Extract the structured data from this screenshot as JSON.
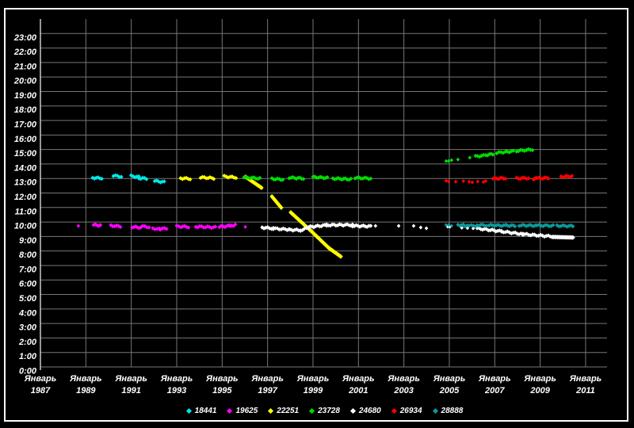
{
  "window": {
    "background": "#000000",
    "frame_color": "#ffffff"
  },
  "chart_data": {
    "type": "scatter",
    "title": "",
    "xlabel": "",
    "ylabel": "",
    "grid": true,
    "gridline_color": "#777777",
    "axis_color": "#d8d8d8",
    "text_color": "#ffffff",
    "marker": "diamond",
    "legend_position": "bottom-center",
    "x_range": [
      1987,
      2011.95
    ],
    "y_range_hours": [
      0,
      24
    ],
    "x_axis": {
      "month_label": "Январь",
      "tick_years": [
        1987,
        1989,
        1991,
        1993,
        1995,
        1997,
        1999,
        2001,
        2003,
        2005,
        2007,
        2009,
        2011
      ]
    },
    "y_axis": {
      "ticks": [
        "23:00",
        "22:00",
        "21:00",
        "20:00",
        "19:00",
        "18:00",
        "17:00",
        "16:00",
        "15:00",
        "14:00",
        "13:00",
        "12:00",
        "11:00",
        "10:00",
        "9:00",
        "8:00",
        "7:00",
        "6:00",
        "5:00",
        "4:00",
        "3:00",
        "2:00",
        "1:00",
        "0:00"
      ]
    },
    "series": [
      {
        "name": "18441",
        "color": "#00e8e8",
        "points": [],
        "segments": [
          [
            1989.3,
            13.05,
            1989.7,
            13.02
          ],
          [
            1990.21,
            13.2,
            1990.56,
            13.13
          ],
          [
            1990.99,
            13.17,
            1991.33,
            13.1
          ],
          [
            1991.34,
            13.02,
            1991.67,
            13.0
          ],
          [
            1992.03,
            12.83,
            1992.45,
            12.75
          ]
        ],
        "trail": []
      },
      {
        "name": "19625",
        "color": "#ff00ff",
        "points": [
          [
            1988.67,
            9.73
          ],
          [
            1996.02,
            9.66
          ]
        ],
        "segments": [
          [
            1989.34,
            9.8,
            1989.64,
            9.77
          ],
          [
            1990.1,
            9.75,
            1990.52,
            9.7
          ],
          [
            1991.04,
            9.66,
            1991.43,
            9.62
          ],
          [
            1991.5,
            9.7,
            1991.78,
            9.65
          ],
          [
            1991.95,
            9.56,
            1992.24,
            9.51
          ],
          [
            1992.27,
            9.51,
            1992.55,
            9.56
          ],
          [
            1993.0,
            9.7,
            1993.52,
            9.66
          ],
          [
            1993.84,
            9.68,
            1994.7,
            9.63
          ],
          [
            1994.88,
            9.67,
            1995.35,
            9.73
          ],
          [
            1995.35,
            9.73,
            1995.58,
            9.8
          ]
        ],
        "trail": []
      },
      {
        "name": "22251",
        "color": "#ffff00",
        "points": [],
        "segments": [
          [
            1993.17,
            13.02,
            1993.59,
            12.98
          ],
          [
            1994.05,
            13.08,
            1994.63,
            13.02
          ],
          [
            1995.09,
            13.14,
            1995.61,
            13.07
          ]
        ],
        "trail": [
          [
            1996.03,
            13.12,
            1996.73,
            12.36
          ],
          [
            1997.19,
            11.76,
            1997.6,
            10.99
          ],
          [
            1998.02,
            10.66,
            1998.9,
            9.4
          ],
          [
            1998.9,
            9.4,
            1999.7,
            8.2
          ],
          [
            1999.7,
            8.2,
            2000.22,
            7.62
          ]
        ]
      },
      {
        "name": "23728",
        "color": "#00dd00",
        "points": [
          [
            2004.86,
            14.2
          ],
          [
            2004.97,
            14.21
          ],
          [
            2005.1,
            14.26
          ],
          [
            2005.38,
            14.31
          ],
          [
            2005.9,
            14.44
          ]
        ],
        "segments": [
          [
            1995.96,
            13.08,
            1996.66,
            13.0
          ],
          [
            1997.19,
            12.98,
            1997.67,
            12.93
          ],
          [
            1997.95,
            13.06,
            1998.58,
            13.0
          ],
          [
            1999.0,
            13.1,
            1999.63,
            13.04
          ],
          [
            1999.87,
            13.0,
            2000.67,
            12.95
          ],
          [
            2000.85,
            13.05,
            2001.54,
            13.0
          ],
          [
            2006.15,
            14.52,
            2006.5,
            14.58
          ],
          [
            2006.6,
            14.62,
            2006.92,
            14.68
          ],
          [
            2007.09,
            14.76,
            2007.46,
            14.84
          ],
          [
            2007.5,
            14.84,
            2007.82,
            14.88
          ],
          [
            2007.96,
            14.9,
            2008.66,
            15.0
          ]
        ],
        "trail": []
      },
      {
        "name": "24680",
        "color": "#ffffff",
        "points": [
          [
            2001.75,
            9.73
          ],
          [
            2002.77,
            9.73
          ],
          [
            2003.43,
            9.73
          ],
          [
            2003.74,
            9.62
          ],
          [
            2003.99,
            9.57
          ],
          [
            2004.93,
            9.68
          ],
          [
            2005.03,
            9.68
          ],
          [
            2005.55,
            9.6
          ],
          [
            2005.8,
            9.58
          ],
          [
            2006.05,
            9.56
          ]
        ],
        "segments": [
          [
            1996.76,
            9.62,
            1997.25,
            9.56
          ],
          [
            1997.25,
            9.55,
            1997.95,
            9.48
          ],
          [
            1997.95,
            9.47,
            1998.45,
            9.43
          ],
          [
            1998.45,
            9.44,
            1998.8,
            9.6
          ],
          [
            1998.8,
            9.65,
            1999.6,
            9.78
          ],
          [
            1999.6,
            9.79,
            2000.74,
            9.8
          ],
          [
            2000.74,
            9.74,
            2001.54,
            9.7
          ],
          [
            2006.22,
            9.56,
            2007.3,
            9.35
          ],
          [
            2007.3,
            9.35,
            2008.24,
            9.16
          ],
          [
            2008.24,
            9.16,
            2009.53,
            9.0
          ]
        ],
        "trail": [
          [
            2009.53,
            8.97,
            2010.44,
            8.93
          ]
        ]
      },
      {
        "name": "26934",
        "color": "#ff0000",
        "points": [
          [
            2004.86,
            12.84
          ],
          [
            2004.97,
            12.79
          ],
          [
            2005.28,
            12.78
          ],
          [
            2005.62,
            12.82
          ],
          [
            2005.87,
            12.78
          ],
          [
            2006.01,
            12.74
          ],
          [
            2006.25,
            12.79
          ],
          [
            2006.5,
            12.76
          ],
          [
            2006.6,
            12.82
          ]
        ],
        "segments": [
          [
            2006.92,
            13.0,
            2007.47,
            13.02
          ],
          [
            2007.96,
            13.01,
            2008.49,
            13.03
          ],
          [
            2008.7,
            12.99,
            2008.82,
            12.99
          ],
          [
            2008.87,
            13.01,
            2009.36,
            13.04
          ],
          [
            2009.92,
            13.12,
            2010.4,
            13.16
          ]
        ],
        "trail": []
      },
      {
        "name": "28888",
        "color": "#0b9a9a",
        "points": [
          [
            2004.86,
            9.79
          ],
          [
            2004.97,
            9.79
          ],
          [
            2005.1,
            9.74
          ]
        ],
        "segments": [
          [
            2005.38,
            9.8,
            2005.62,
            9.78
          ],
          [
            2005.69,
            9.74,
            2005.87,
            9.72
          ],
          [
            2005.97,
            9.74,
            2006.15,
            9.73
          ],
          [
            2006.22,
            9.79,
            2006.64,
            9.77
          ],
          [
            2006.74,
            9.78,
            2007.47,
            9.75
          ],
          [
            2007.5,
            9.76,
            2007.89,
            9.74
          ],
          [
            2008.07,
            9.77,
            2008.8,
            9.75
          ],
          [
            2008.87,
            9.76,
            2009.57,
            9.74
          ],
          [
            2009.74,
            9.74,
            2010.44,
            9.72
          ]
        ],
        "trail": []
      }
    ]
  }
}
